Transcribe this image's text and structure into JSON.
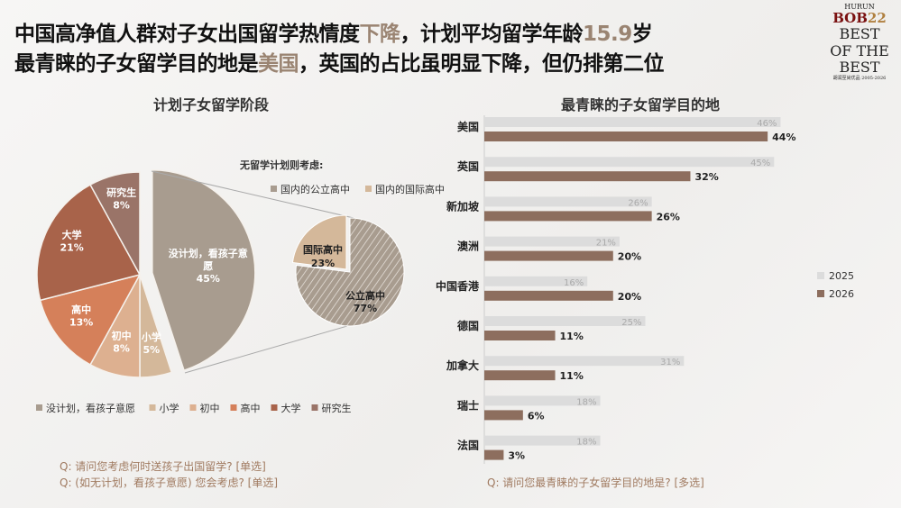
{
  "header": {
    "line1_a": "中国高净值人群对子女出国留学热情度",
    "line1_hl": "下降",
    "line1_b": "，计划平均留学年龄",
    "line1_num": "15.9",
    "line1_c": "岁",
    "line2_a": "最青睐的子女留学目的地是",
    "line2_hl": "美国",
    "line2_b": "，英国的占比虽明显下降，但仍排第二位"
  },
  "logo": {
    "text1": "HURUN",
    "text2": "BOB22",
    "text3": "BEST OF THE BEST",
    "text4": "胡润至尚优品 2005-2026"
  },
  "colors": {
    "accent": "#9a8472",
    "q": "#a07a60"
  },
  "chart_data": [
    {
      "type": "pie",
      "title": "计划子女留学阶段",
      "categories": [
        "没计划，看孩子意愿",
        "小学",
        "初中",
        "高中",
        "大学",
        "研究生"
      ],
      "labels": [
        "没计划，看孩子意愿",
        "小学",
        "初中",
        "高中",
        "大学",
        "研究生"
      ],
      "values": [
        45,
        5,
        8,
        13,
        21,
        8
      ],
      "colors": [
        "#a89c8f",
        "#d4b89a",
        "#ddb090",
        "#d5805a",
        "#a8634a",
        "#9a7468"
      ],
      "legend": "bottom"
    },
    {
      "type": "pie",
      "title": "无留学计划则考虑:",
      "categories": [
        "国内的公立高中",
        "国内的国际高中"
      ],
      "labels": [
        "公立高中",
        "国际高中"
      ],
      "values": [
        77,
        23
      ],
      "colors": [
        "#a89c8f",
        "#d4b89a"
      ],
      "legend": "top"
    },
    {
      "type": "bar",
      "orientation": "horizontal",
      "title": "最青睐的子女留学目的地",
      "categories": [
        "美国",
        "英国",
        "新加坡",
        "澳洲",
        "中国香港",
        "德国",
        "加拿大",
        "瑞士",
        "法国"
      ],
      "series": [
        {
          "name": "2025",
          "values": [
            46,
            45,
            26,
            21,
            16,
            25,
            31,
            18,
            18
          ],
          "color": "#dcdcdc"
        },
        {
          "name": "2026",
          "values": [
            44,
            32,
            26,
            20,
            20,
            11,
            11,
            6,
            3
          ],
          "color": "#8d6e5e"
        }
      ],
      "legend": "right"
    }
  ],
  "questions": {
    "q1": "Q: 请问您考虑何时送孩子出国留学? [单选]",
    "q2": "Q: (如无计划，看孩子意愿) 您会考虑? [单选]",
    "q3": "Q: 请问您最青睐的子女留学目的地是? [多选]"
  }
}
